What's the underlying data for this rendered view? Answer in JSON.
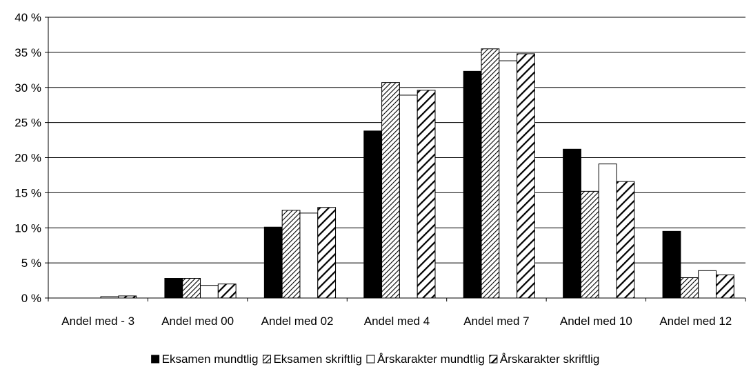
{
  "chart_data": {
    "type": "bar",
    "categories": [
      "Andel med - 3",
      "Andel med 00",
      "Andel med 02",
      "Andel med 4",
      "Andel med 7",
      "Andel med 10",
      "Andel med 12"
    ],
    "series": [
      {
        "name": "Eksamen mundtlig",
        "values": [
          0.0,
          2.8,
          10.1,
          23.8,
          32.3,
          21.2,
          9.5
        ],
        "fill": "solid-black"
      },
      {
        "name": "Eksamen skriftlig",
        "values": [
          0.0,
          2.8,
          12.5,
          30.7,
          35.5,
          15.2,
          2.9
        ],
        "fill": "fine-diagonal-hatch"
      },
      {
        "name": "Årskarakter mundtlig",
        "values": [
          0.2,
          1.8,
          12.1,
          28.9,
          33.8,
          19.1,
          3.9
        ],
        "fill": "white"
      },
      {
        "name": "Årskarakter skriftlig",
        "values": [
          0.3,
          2.0,
          12.9,
          29.6,
          34.8,
          16.6,
          3.3
        ],
        "fill": "wide-diagonal-hatch"
      }
    ],
    "yticks": [
      "0 %",
      "5 %",
      "10 %",
      "15 %",
      "20 %",
      "25 %",
      "30 %",
      "35 %",
      "40 %"
    ],
    "ylim": [
      0,
      40
    ],
    "ystep": 5,
    "title": "",
    "xlabel": "",
    "ylabel": "",
    "grid": true,
    "legend_position": "bottom",
    "colors": {
      "bar_stroke": "#000000",
      "grid": "#000000",
      "background": "#ffffff"
    }
  }
}
